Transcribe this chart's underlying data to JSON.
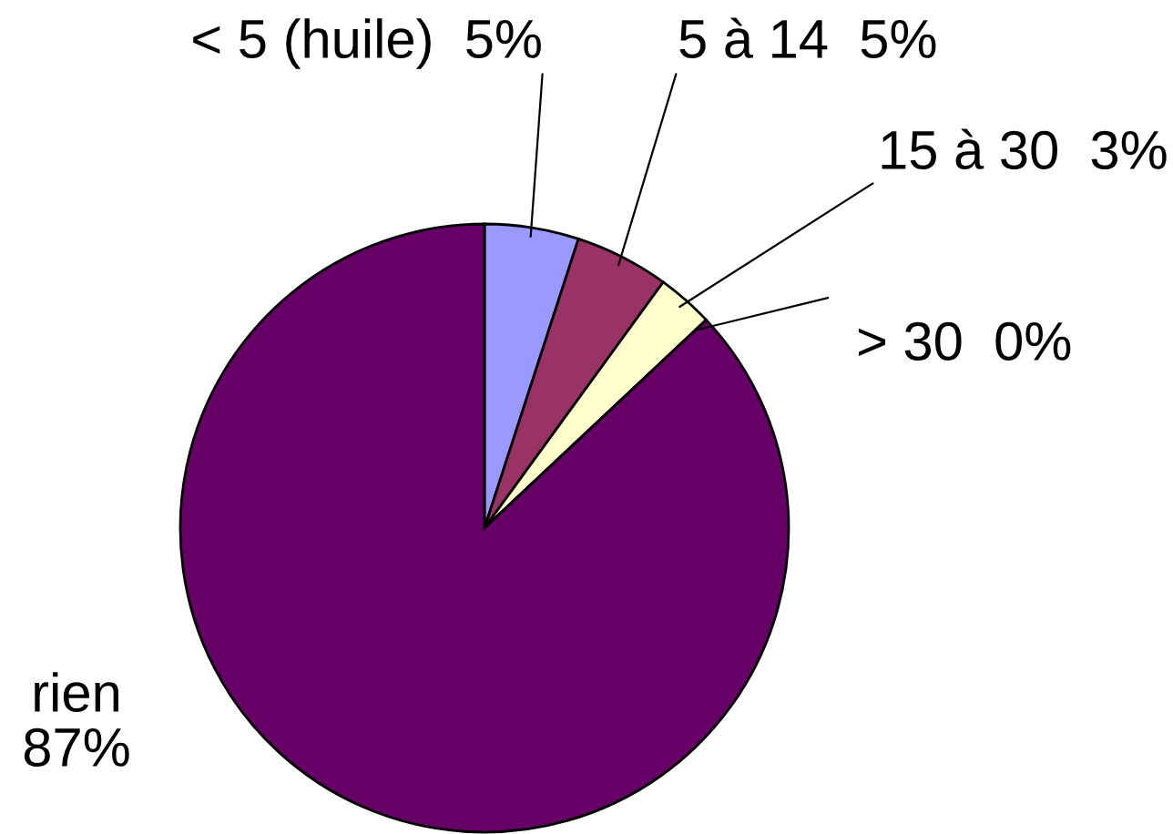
{
  "chart_data": {
    "type": "pie",
    "categories": [
      "< 5 (huile)",
      "5 à 14",
      "15 à 30",
      "> 30",
      "rien"
    ],
    "values": [
      5,
      5,
      3,
      0,
      87
    ],
    "value_labels": [
      "5%",
      "5%",
      "3%",
      "0%",
      "87%"
    ],
    "colors": [
      "#9999ff",
      "#993366",
      "#ffffcc",
      "#ccffff",
      "#660066"
    ]
  }
}
